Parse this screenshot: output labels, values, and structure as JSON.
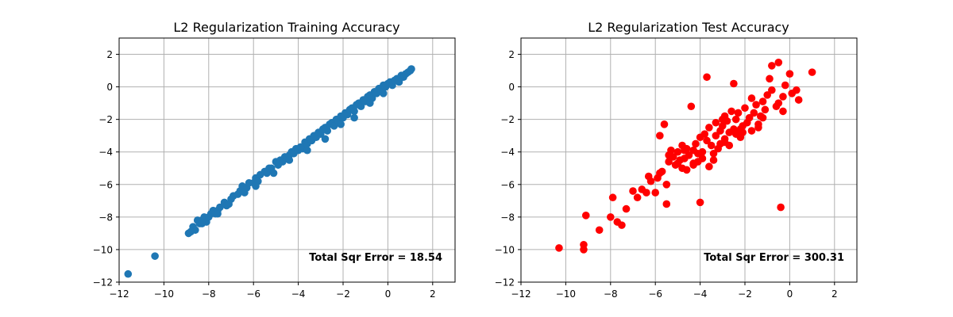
{
  "chart_data": [
    {
      "type": "scatter",
      "title": "L2 Regularization Training Accuracy",
      "xlabel": "",
      "ylabel": "",
      "xlim": [
        -12,
        3
      ],
      "ylim": [
        -12,
        3
      ],
      "xticks": [
        -12,
        -10,
        -8,
        -6,
        -4,
        -2,
        0,
        2
      ],
      "yticks": [
        -12,
        -10,
        -8,
        -6,
        -4,
        -2,
        0,
        2
      ],
      "xtick_labels": [
        "−12",
        "−10",
        "−8",
        "−6",
        "−4",
        "−2",
        "0",
        "2"
      ],
      "ytick_labels": [
        "−12",
        "−10",
        "−8",
        "−6",
        "−4",
        "−2",
        "0",
        "2"
      ],
      "grid": true,
      "color": "#1f77b4",
      "annotation": "Total Sqr Error = 18.54",
      "series": [
        {
          "x": [
            -11.6,
            -10.4,
            -8.9,
            -8.7,
            -8.6,
            -8.5,
            -8.4,
            -8.3,
            -8.2,
            -8.1,
            -8.0,
            -7.9,
            -7.8,
            -7.7,
            -7.6,
            -7.5,
            -7.3,
            -7.2,
            -7.0,
            -6.9,
            -6.7,
            -6.6,
            -6.5,
            -6.3,
            -6.2,
            -6.0,
            -5.9,
            -5.8,
            -5.7,
            -5.5,
            -5.4,
            -5.3,
            -5.2,
            -5.0,
            -4.9,
            -4.8,
            -4.7,
            -4.6,
            -4.5,
            -4.4,
            -4.3,
            -4.2,
            -4.1,
            -4.0,
            -3.9,
            -3.8,
            -3.7,
            -3.6,
            -3.5,
            -3.4,
            -3.3,
            -3.2,
            -3.1,
            -3.0,
            -2.9,
            -2.8,
            -2.7,
            -2.6,
            -2.5,
            -2.4,
            -2.3,
            -2.2,
            -2.1,
            -2.0,
            -1.9,
            -1.8,
            -1.7,
            -1.6,
            -1.5,
            -1.4,
            -1.3,
            -1.2,
            -1.1,
            -1.0,
            -0.9,
            -0.8,
            -0.7,
            -0.6,
            -0.5,
            -0.4,
            -0.3,
            -0.2,
            -0.1,
            0.0,
            0.1,
            0.2,
            0.3,
            0.4,
            0.5,
            0.6,
            0.7,
            0.8,
            0.9,
            1.0,
            1.05,
            -8.8,
            -8.3,
            -7.6,
            -7.1,
            -6.4,
            -5.9,
            -5.1,
            -4.4,
            -3.6,
            -2.8,
            -2.1,
            -1.5,
            -0.8,
            -0.2,
            0.5
          ],
          "y": [
            -11.5,
            -10.4,
            -9.0,
            -8.6,
            -8.8,
            -8.2,
            -8.4,
            -8.2,
            -8.0,
            -8.3,
            -8.0,
            -7.8,
            -7.6,
            -7.8,
            -7.6,
            -7.4,
            -7.1,
            -7.3,
            -6.9,
            -6.7,
            -6.6,
            -6.4,
            -6.1,
            -6.2,
            -5.9,
            -5.9,
            -5.6,
            -5.8,
            -5.4,
            -5.2,
            -5.3,
            -5.0,
            -5.0,
            -4.6,
            -4.8,
            -4.5,
            -4.6,
            -4.3,
            -4.4,
            -4.2,
            -4.0,
            -4.1,
            -3.8,
            -3.9,
            -3.7,
            -3.8,
            -3.4,
            -3.5,
            -3.2,
            -3.3,
            -3.0,
            -3.1,
            -2.8,
            -2.9,
            -2.6,
            -2.5,
            -2.7,
            -2.3,
            -2.2,
            -2.4,
            -2.0,
            -2.1,
            -1.8,
            -1.9,
            -1.6,
            -1.7,
            -1.4,
            -1.3,
            -1.5,
            -1.1,
            -1.0,
            -1.2,
            -0.8,
            -0.9,
            -0.6,
            -0.5,
            -0.7,
            -0.3,
            -0.4,
            -0.1,
            -0.2,
            0.1,
            0.0,
            0.2,
            0.3,
            0.1,
            0.4,
            0.5,
            0.4,
            0.7,
            0.6,
            0.8,
            0.9,
            1.0,
            1.1,
            -8.9,
            -8.4,
            -7.8,
            -7.2,
            -6.5,
            -6.1,
            -5.3,
            -4.5,
            -3.9,
            -3.2,
            -2.3,
            -1.9,
            -1.0,
            -0.4,
            0.3
          ]
        }
      ]
    },
    {
      "type": "scatter",
      "title": "L2 Regularization Test Accuracy",
      "xlabel": "",
      "ylabel": "",
      "xlim": [
        -12,
        3
      ],
      "ylim": [
        -12,
        3
      ],
      "xticks": [
        -12,
        -10,
        -8,
        -6,
        -4,
        -2,
        0,
        2
      ],
      "yticks": [
        -12,
        -10,
        -8,
        -6,
        -4,
        -2,
        0,
        2
      ],
      "xtick_labels": [
        "−12",
        "−10",
        "−8",
        "−6",
        "−4",
        "−2",
        "0",
        "2"
      ],
      "ytick_labels": [
        "−12",
        "−10",
        "−8",
        "−6",
        "−4",
        "−2",
        "0",
        "2"
      ],
      "grid": true,
      "color": "#ff0000",
      "annotation": "Total Sqr Error = 300.31",
      "series": [
        {
          "x": [
            -10.3,
            -9.2,
            -9.2,
            -9.1,
            -8.5,
            -8.0,
            -7.9,
            -7.7,
            -7.5,
            -7.3,
            -7.0,
            -6.8,
            -6.6,
            -6.4,
            -6.2,
            -6.0,
            -5.9,
            -5.8,
            -5.7,
            -5.6,
            -5.5,
            -5.5,
            -5.4,
            -5.3,
            -5.2,
            -5.1,
            -5.0,
            -4.9,
            -4.8,
            -4.8,
            -4.7,
            -4.6,
            -4.5,
            -4.4,
            -4.3,
            -4.3,
            -4.2,
            -4.1,
            -4.0,
            -4.0,
            -3.9,
            -3.8,
            -3.7,
            -3.7,
            -3.6,
            -3.5,
            -3.4,
            -3.3,
            -3.3,
            -3.2,
            -3.1,
            -3.0,
            -2.9,
            -2.9,
            -2.8,
            -2.7,
            -2.6,
            -2.5,
            -2.5,
            -2.4,
            -2.3,
            -2.2,
            -2.1,
            -2.0,
            -1.9,
            -1.8,
            -1.7,
            -1.6,
            -1.5,
            -1.4,
            -1.3,
            -1.2,
            -1.1,
            -1.0,
            -0.9,
            -0.8,
            -0.6,
            -0.5,
            -0.4,
            -0.3,
            -0.2,
            0.0,
            0.1,
            0.3,
            0.4,
            1.0,
            -5.4,
            -4.7,
            -3.9,
            -4.3,
            -3.6,
            -2.7,
            -2.1,
            -1.2,
            -0.5,
            -0.8,
            -1.4,
            -2.9,
            -3.4,
            -4.6,
            -5.0,
            -3.0,
            -2.2,
            -1.7,
            -6.3,
            -5.8,
            -0.3,
            -2.4,
            -4.1,
            -3.1
          ],
          "y": [
            -9.9,
            -9.7,
            -10.0,
            -7.9,
            -8.8,
            -8.0,
            -6.8,
            -8.3,
            -8.5,
            -7.5,
            -6.4,
            -6.8,
            -6.3,
            -6.5,
            -5.8,
            -6.5,
            -5.6,
            -3.0,
            -5.2,
            -2.3,
            -6.0,
            -7.2,
            -4.6,
            -3.9,
            -4.3,
            -4.8,
            -4.0,
            -4.5,
            -3.6,
            -5.0,
            -4.4,
            -3.8,
            -4.2,
            -1.2,
            -3.9,
            -4.7,
            -3.5,
            -4.1,
            -7.1,
            -3.1,
            -4.0,
            -2.9,
            0.6,
            -3.3,
            -2.5,
            -3.6,
            -4.5,
            -3.0,
            -2.2,
            -3.8,
            -2.7,
            -2.4,
            -3.4,
            -1.8,
            -2.1,
            -2.8,
            -1.5,
            -2.6,
            0.2,
            -2.0,
            -1.6,
            -3.1,
            -2.4,
            -1.3,
            -2.2,
            -1.9,
            -0.7,
            -1.6,
            -1.1,
            -2.5,
            -1.8,
            -0.9,
            -1.4,
            -0.5,
            0.5,
            1.3,
            -1.2,
            1.5,
            -7.4,
            -0.6,
            0.1,
            0.8,
            -0.4,
            -0.2,
            -0.8,
            0.9,
            -4.2,
            -3.9,
            -4.4,
            -4.8,
            -4.9,
            -3.6,
            -2.8,
            -1.9,
            -1.0,
            -0.2,
            -2.3,
            -3.2,
            -4.1,
            -5.1,
            -4.7,
            -2.0,
            -2.6,
            -2.7,
            -5.5,
            -5.3,
            -1.5,
            -2.9,
            -4.6,
            -3.5
          ]
        }
      ]
    }
  ]
}
